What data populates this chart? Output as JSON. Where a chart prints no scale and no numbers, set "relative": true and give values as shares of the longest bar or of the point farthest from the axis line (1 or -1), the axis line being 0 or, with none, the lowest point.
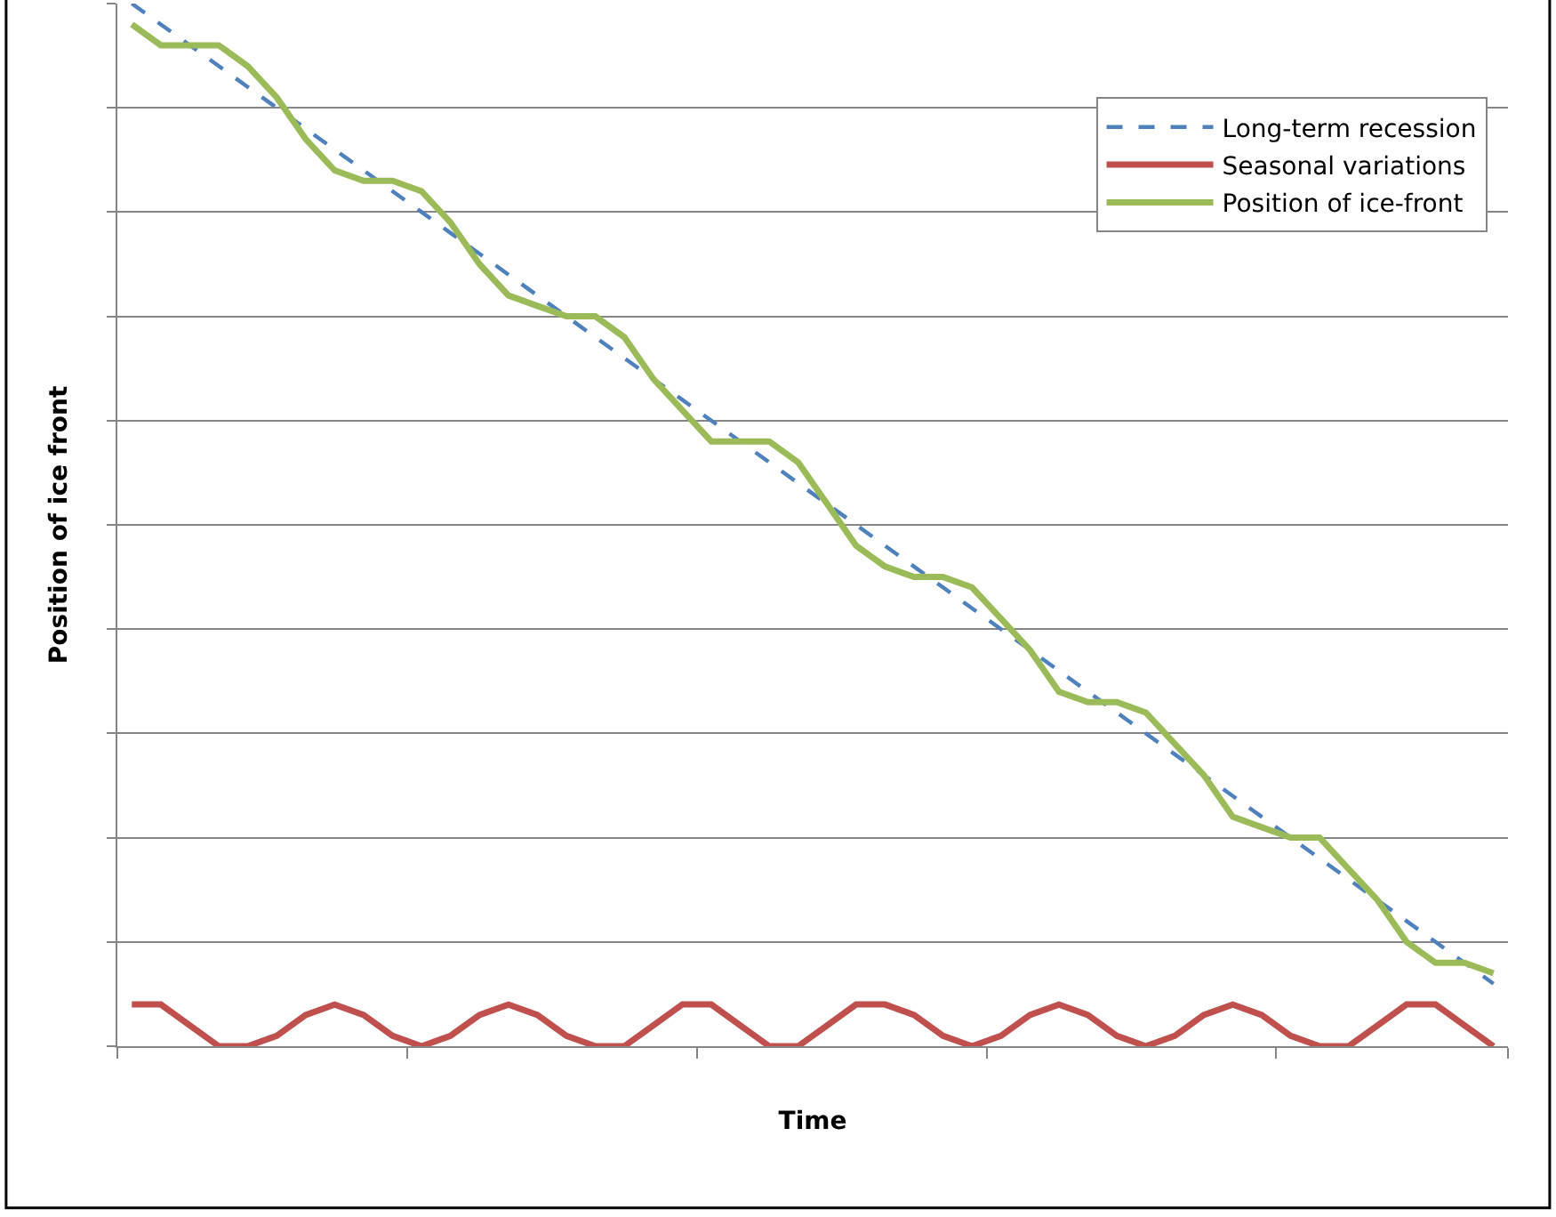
{
  "chart_data": {
    "type": "line",
    "relative": true,
    "xlabel": "Time",
    "ylabel": "Position of ice front",
    "categories": [
      null,
      null,
      null,
      null,
      null,
      null,
      null,
      null,
      null,
      null,
      null,
      null,
      null,
      null,
      null,
      null,
      null,
      null,
      null,
      null,
      null,
      null,
      null,
      null,
      null,
      null,
      null,
      null,
      null,
      null,
      null,
      null,
      null,
      null,
      null,
      null,
      null,
      null,
      null,
      null,
      null,
      null,
      null,
      null,
      null,
      null,
      null,
      null
    ],
    "series": [
      {
        "name": "Long-term recession",
        "color": "#4f81bd",
        "line_style": "dashed",
        "values": [
          1.0,
          0.98,
          0.96,
          0.94,
          0.92,
          0.9,
          0.88,
          0.86,
          0.84,
          0.82,
          0.8,
          0.78,
          0.76,
          0.74,
          0.72,
          0.7,
          0.68,
          0.66,
          0.64,
          0.62,
          0.6,
          0.58,
          0.56,
          0.54,
          0.52,
          0.5,
          0.48,
          0.46,
          0.44,
          0.42,
          0.4,
          0.38,
          0.36,
          0.34,
          0.32,
          0.3,
          0.28,
          0.26,
          0.24,
          0.22,
          0.2,
          0.18,
          0.16,
          0.14,
          0.12,
          0.1,
          0.08,
          0.06
        ]
      },
      {
        "name": "Seasonal variations",
        "color": "#c0504d",
        "line_style": "solid",
        "values": [
          0.04,
          0.04,
          0.02,
          0,
          0,
          0.01,
          0.03,
          0.04,
          0.03,
          0.01,
          0,
          0.01,
          0.03,
          0.04,
          0.03,
          0.01,
          0,
          0,
          0.02,
          0.04,
          0.04,
          0.02,
          0,
          0,
          0.02,
          0.04,
          0.04,
          0.03,
          0.01,
          0,
          0.01,
          0.03,
          0.04,
          0.03,
          0.01,
          0,
          0.01,
          0.03,
          0.04,
          0.03,
          0.01,
          0,
          0,
          0.02,
          0.04,
          0.04,
          0.02,
          0
        ]
      },
      {
        "name": "Position of ice-front",
        "color": "#9bbb59",
        "line_style": "solid",
        "values": [
          0.98,
          0.96,
          0.96,
          0.96,
          0.94,
          0.91,
          0.87,
          0.84,
          0.83,
          0.83,
          0.82,
          0.79,
          0.75,
          0.72,
          0.71,
          0.7,
          0.7,
          0.68,
          0.64,
          0.61,
          0.58,
          0.58,
          0.58,
          0.56,
          0.52,
          0.48,
          0.46,
          0.45,
          0.45,
          0.44,
          0.41,
          0.38,
          0.34,
          0.33,
          0.33,
          0.32,
          0.29,
          0.26,
          0.22,
          0.21,
          0.2,
          0.2,
          0.17,
          0.14,
          0.1,
          0.08,
          0.08,
          0.07
        ]
      }
    ],
    "grid": "y",
    "legend": "top right",
    "marker": "none",
    "tick_labels": false
  }
}
